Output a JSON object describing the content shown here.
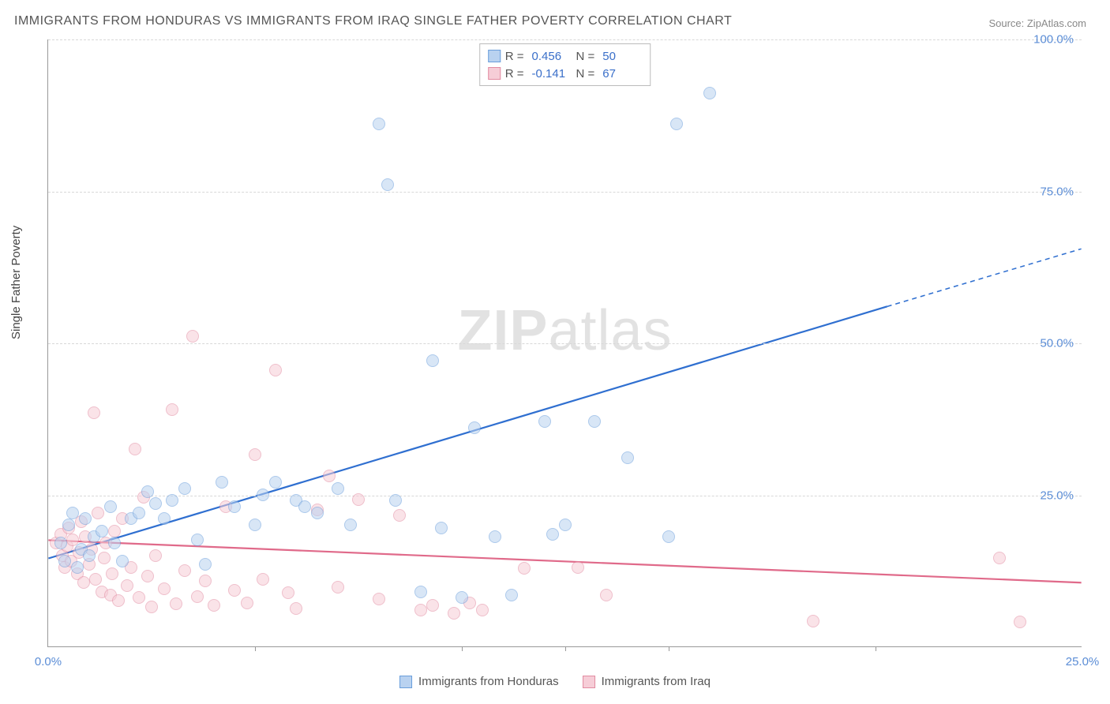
{
  "title": "IMMIGRANTS FROM HONDURAS VS IMMIGRANTS FROM IRAQ SINGLE FATHER POVERTY CORRELATION CHART",
  "source": "Source: ZipAtlas.com",
  "ylabel": "Single Father Poverty",
  "watermark": {
    "bold": "ZIP",
    "rest": "atlas"
  },
  "chart": {
    "type": "scatter",
    "xlim": [
      0,
      25
    ],
    "ylim": [
      0,
      100
    ],
    "xticks": [
      0,
      25
    ],
    "xtick_labels": [
      "0.0%",
      "25.0%"
    ],
    "xtick_marks": [
      5,
      10,
      12.5,
      15,
      20
    ],
    "yticks": [
      25,
      50,
      75,
      100
    ],
    "ytick_labels": [
      "25.0%",
      "50.0%",
      "75.0%",
      "100.0%"
    ],
    "grid_color": "#d8d8d8",
    "background_color": "#ffffff",
    "axis_color": "#999999",
    "tick_label_color": "#5b8dd6",
    "marker_radius": 8,
    "marker_opacity": 0.55,
    "series": [
      {
        "name": "Immigrants from Honduras",
        "fill": "#b9d2f0",
        "stroke": "#6a9edb",
        "R": "0.456",
        "N": "50",
        "trend": {
          "x1": 0,
          "y1": 14.5,
          "x2": 20.3,
          "y2": 56,
          "ext_x2": 25,
          "ext_y2": 65.5,
          "color": "#2f6fd0",
          "width": 2.2,
          "dash_ext": "6,5"
        },
        "points": [
          [
            0.3,
            17
          ],
          [
            0.4,
            14
          ],
          [
            0.5,
            20
          ],
          [
            0.6,
            22
          ],
          [
            0.7,
            13
          ],
          [
            0.8,
            16
          ],
          [
            0.9,
            21
          ],
          [
            1.0,
            15
          ],
          [
            1.1,
            18
          ],
          [
            1.3,
            19
          ],
          [
            1.5,
            23
          ],
          [
            1.6,
            17
          ],
          [
            1.8,
            14
          ],
          [
            2.0,
            21
          ],
          [
            2.2,
            22
          ],
          [
            2.4,
            25.5
          ],
          [
            2.6,
            23.5
          ],
          [
            2.8,
            21
          ],
          [
            3.0,
            24
          ],
          [
            3.3,
            26
          ],
          [
            3.6,
            17.5
          ],
          [
            3.8,
            13.5
          ],
          [
            4.2,
            27
          ],
          [
            4.5,
            23
          ],
          [
            5.0,
            20
          ],
          [
            5.2,
            25
          ],
          [
            5.5,
            27
          ],
          [
            6.0,
            24
          ],
          [
            6.2,
            23
          ],
          [
            6.5,
            22
          ],
          [
            7.0,
            26
          ],
          [
            7.3,
            20
          ],
          [
            8.0,
            86
          ],
          [
            8.2,
            76
          ],
          [
            8.4,
            24
          ],
          [
            9.0,
            9
          ],
          [
            9.3,
            47
          ],
          [
            9.5,
            19.5
          ],
          [
            10.0,
            8
          ],
          [
            10.3,
            36
          ],
          [
            10.8,
            18
          ],
          [
            11.2,
            8.5
          ],
          [
            12.0,
            37
          ],
          [
            12.2,
            18.5
          ],
          [
            12.5,
            20
          ],
          [
            13.2,
            37
          ],
          [
            14.0,
            31
          ],
          [
            15.0,
            18
          ],
          [
            15.2,
            86
          ],
          [
            16.0,
            91
          ]
        ]
      },
      {
        "name": "Immigrants from Iraq",
        "fill": "#f6cdd7",
        "stroke": "#e28ba1",
        "R": "-0.141",
        "N": "67",
        "trend": {
          "x1": 0,
          "y1": 17.5,
          "x2": 25,
          "y2": 10.5,
          "color": "#e06a8a",
          "width": 2.2
        },
        "points": [
          [
            0.2,
            17
          ],
          [
            0.3,
            18.5
          ],
          [
            0.35,
            15
          ],
          [
            0.4,
            13
          ],
          [
            0.45,
            16.5
          ],
          [
            0.5,
            19.5
          ],
          [
            0.55,
            14
          ],
          [
            0.6,
            17.5
          ],
          [
            0.7,
            12
          ],
          [
            0.75,
            15.5
          ],
          [
            0.8,
            20.5
          ],
          [
            0.85,
            10.5
          ],
          [
            0.9,
            18
          ],
          [
            1.0,
            13.5
          ],
          [
            1.05,
            16
          ],
          [
            1.1,
            38.5
          ],
          [
            1.15,
            11
          ],
          [
            1.2,
            22
          ],
          [
            1.3,
            9
          ],
          [
            1.35,
            14.5
          ],
          [
            1.4,
            17
          ],
          [
            1.5,
            8.5
          ],
          [
            1.55,
            12
          ],
          [
            1.6,
            19
          ],
          [
            1.7,
            7.5
          ],
          [
            1.8,
            21
          ],
          [
            1.9,
            10
          ],
          [
            2.0,
            13
          ],
          [
            2.1,
            32.5
          ],
          [
            2.2,
            8
          ],
          [
            2.3,
            24.5
          ],
          [
            2.4,
            11.5
          ],
          [
            2.5,
            6.5
          ],
          [
            2.6,
            15
          ],
          [
            2.8,
            9.5
          ],
          [
            3.0,
            39
          ],
          [
            3.1,
            7
          ],
          [
            3.3,
            12.5
          ],
          [
            3.5,
            51
          ],
          [
            3.6,
            8.2
          ],
          [
            3.8,
            10.8
          ],
          [
            4.0,
            6.8
          ],
          [
            4.3,
            23
          ],
          [
            4.5,
            9.2
          ],
          [
            4.8,
            7.2
          ],
          [
            5.0,
            31.5
          ],
          [
            5.2,
            11
          ],
          [
            5.5,
            45.5
          ],
          [
            5.8,
            8.8
          ],
          [
            6.0,
            6.2
          ],
          [
            6.5,
            22.5
          ],
          [
            6.8,
            28
          ],
          [
            7.0,
            9.8
          ],
          [
            7.5,
            24.2
          ],
          [
            8.0,
            7.8
          ],
          [
            8.5,
            21.5
          ],
          [
            9.0,
            6
          ],
          [
            9.3,
            6.8
          ],
          [
            9.8,
            5.5
          ],
          [
            10.2,
            7.2
          ],
          [
            10.5,
            6
          ],
          [
            11.5,
            12.8
          ],
          [
            12.8,
            13
          ],
          [
            13.5,
            8.5
          ],
          [
            18.5,
            4.2
          ],
          [
            23.0,
            14.5
          ],
          [
            23.5,
            4
          ]
        ]
      }
    ]
  },
  "legend_bottom": [
    {
      "label": "Immigrants from Honduras",
      "fill": "#b9d2f0",
      "stroke": "#6a9edb"
    },
    {
      "label": "Immigrants from Iraq",
      "fill": "#f6cdd7",
      "stroke": "#e28ba1"
    }
  ]
}
